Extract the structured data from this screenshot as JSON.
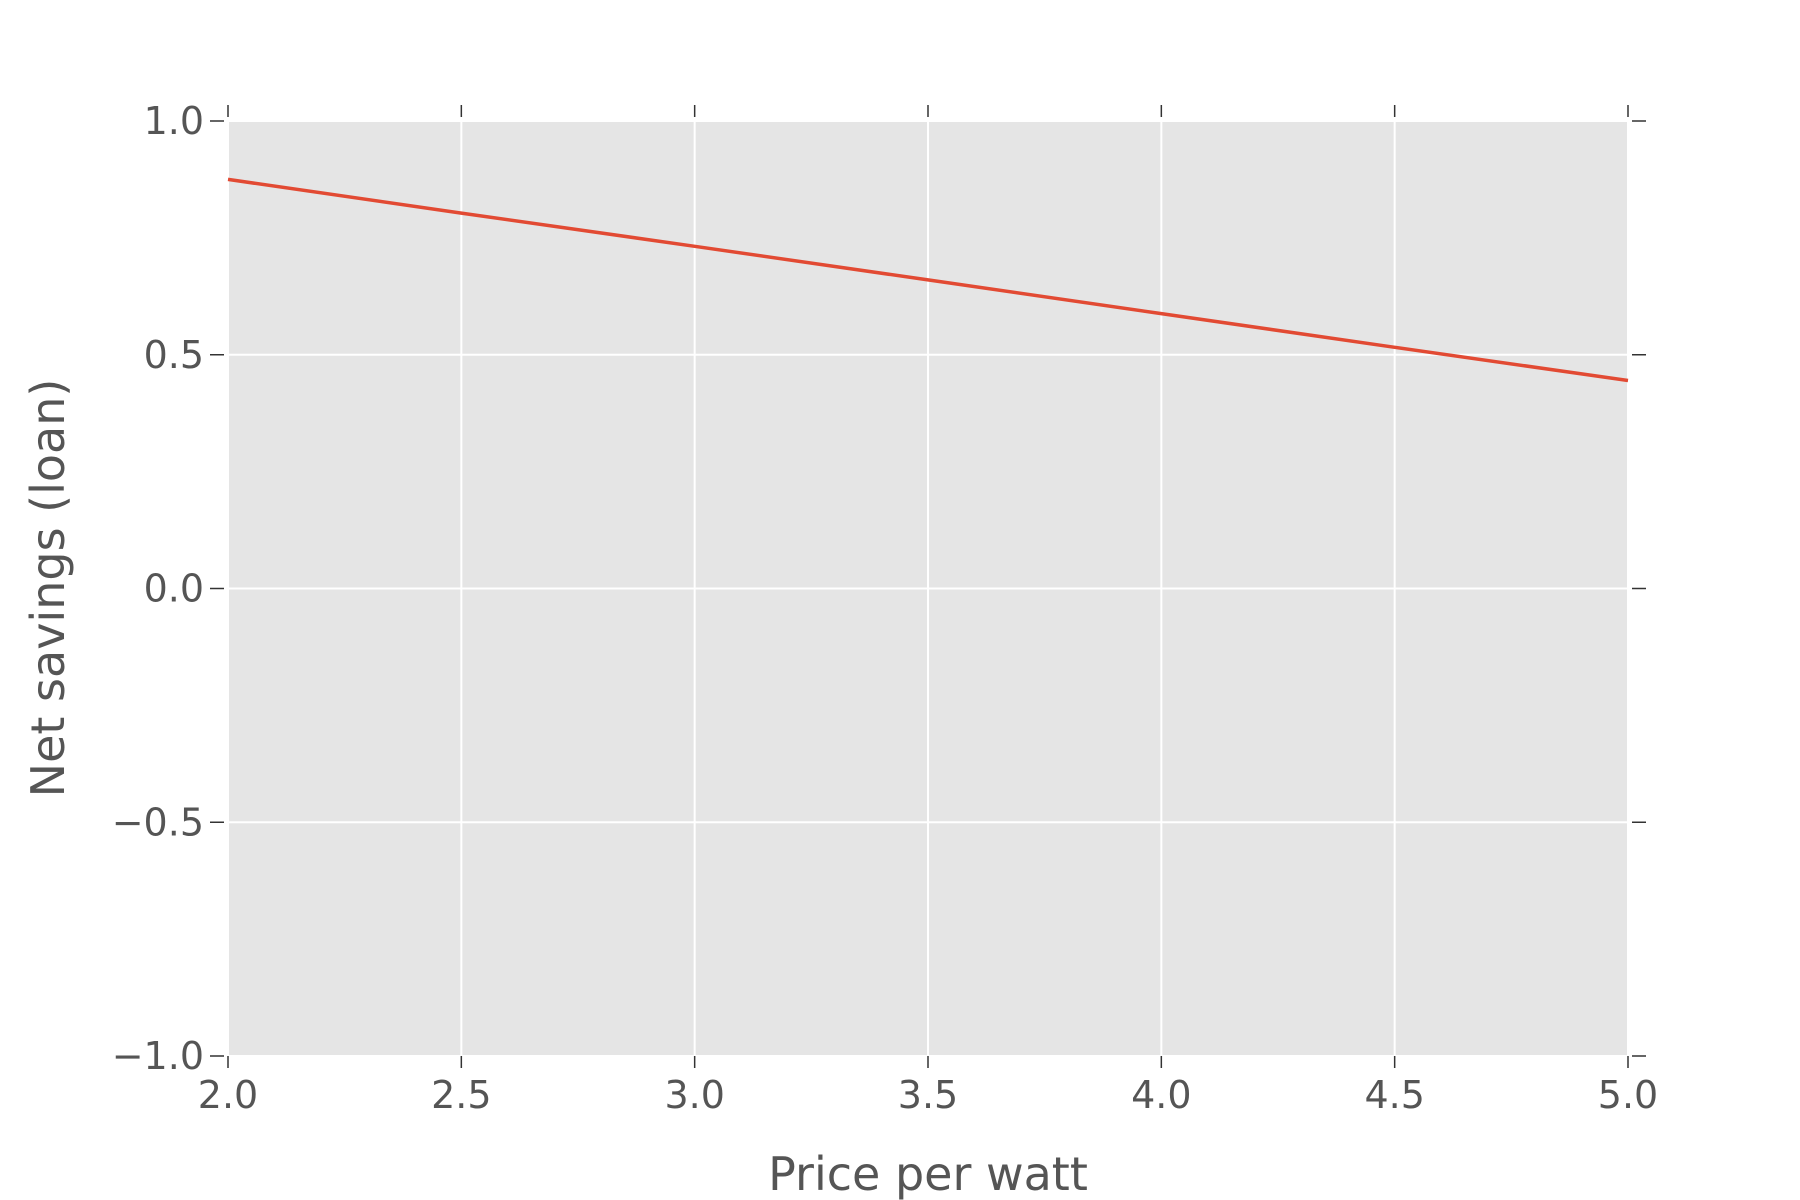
{
  "chart_data": {
    "type": "line",
    "title": "",
    "xlabel": "Price per watt",
    "ylabel": "Net savings (loan)",
    "xlim": [
      2.0,
      5.0
    ],
    "ylim": [
      -1.0,
      1.0
    ],
    "x_ticks": [
      2.0,
      2.5,
      3.0,
      3.5,
      4.0,
      4.5,
      5.0
    ],
    "x_tick_labels": [
      "2.0",
      "2.5",
      "3.0",
      "3.5",
      "4.0",
      "4.5",
      "5.0"
    ],
    "y_ticks": [
      -1.0,
      -0.5,
      0.0,
      0.5,
      1.0
    ],
    "y_tick_labels": [
      "−1.0",
      "−0.5",
      "0.0",
      "0.5",
      "1.0"
    ],
    "grid": true,
    "colors": {
      "plot_background": "#e5e5e5",
      "grid": "#ffffff",
      "line": "#e24a33",
      "text": "#555555"
    },
    "series": [
      {
        "x": [
          2.0,
          2.5,
          3.0,
          3.5,
          4.0,
          4.5,
          5.0
        ],
        "y": [
          0.875,
          0.803,
          0.732,
          0.66,
          0.588,
          0.516,
          0.445
        ]
      }
    ]
  }
}
